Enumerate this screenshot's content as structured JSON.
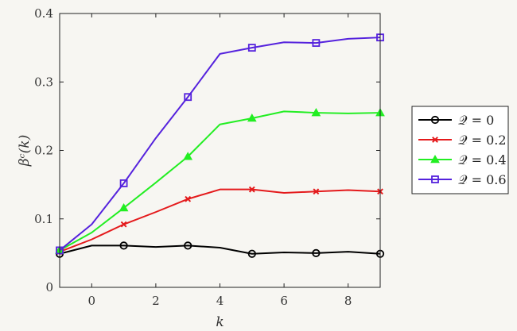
{
  "chart_data": {
    "type": "line",
    "xlabel": "k",
    "ylabel": "βᶜ(k)",
    "xlim": [
      -1,
      9
    ],
    "ylim": [
      0,
      0.4
    ],
    "xticks": [
      0,
      2,
      4,
      6,
      8
    ],
    "yticks": [
      0,
      0.1,
      0.2,
      0.3,
      0.4
    ],
    "xtick_labels": [
      "0",
      "2",
      "4",
      "6",
      "8"
    ],
    "ytick_labels": [
      "0",
      "0.1",
      "0.2",
      "0.3",
      "0.4"
    ],
    "grid": false,
    "legend_position": "outside-right",
    "x": [
      -1,
      0,
      1,
      2,
      3,
      4,
      5,
      6,
      7,
      8,
      9
    ],
    "series": [
      {
        "name": "𝒬 = 0",
        "color": "#000000",
        "marker": "circle",
        "marker_x": [
          -1,
          1,
          3,
          5,
          7,
          9
        ],
        "values": [
          0.049,
          0.061,
          0.061,
          0.059,
          0.061,
          0.058,
          0.049,
          0.051,
          0.05,
          0.052,
          0.049
        ]
      },
      {
        "name": "𝒬 = 0.2",
        "color": "#e41a1c",
        "marker": "cross",
        "marker_x": [
          -1,
          1,
          3,
          5,
          7,
          9
        ],
        "values": [
          0.052,
          0.07,
          0.092,
          0.11,
          0.129,
          0.143,
          0.143,
          0.138,
          0.14,
          0.142,
          0.14
        ]
      },
      {
        "name": "𝒬 = 0.4",
        "color": "#22ee22",
        "marker": "triangle",
        "marker_x": [
          -1,
          1,
          3,
          5,
          7,
          9
        ],
        "values": [
          0.054,
          0.08,
          0.116,
          0.153,
          0.191,
          0.238,
          0.247,
          0.257,
          0.255,
          0.254,
          0.255
        ]
      },
      {
        "name": "𝒬 = 0.6",
        "color": "#5522dd",
        "marker": "square",
        "marker_x": [
          -1,
          1,
          3,
          5,
          7,
          9
        ],
        "values": [
          0.054,
          0.092,
          0.152,
          0.218,
          0.278,
          0.341,
          0.35,
          0.358,
          0.357,
          0.363,
          0.365
        ]
      }
    ]
  }
}
